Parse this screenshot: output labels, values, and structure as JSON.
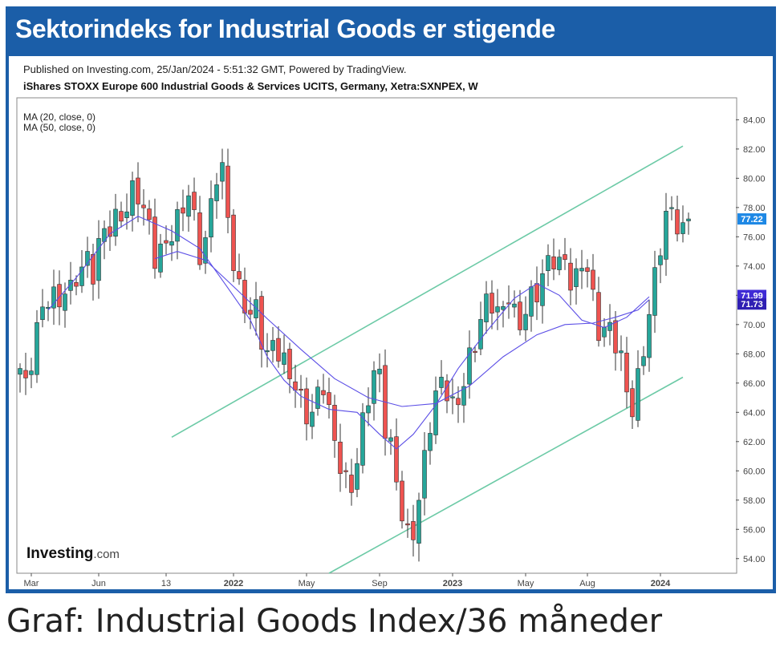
{
  "header": {
    "title": "Sektorindeks for Industrial Goods er stigende"
  },
  "info": {
    "published": "Published on Investing.com, 25/Jan/2024 - 5:51:32 GMT, Powered by TradingView.",
    "instrument": "iShares STOXX Europe 600 Industrial Goods & Services UCITS, Germany, Xetra:SXNPEX, W"
  },
  "caption": "Graf: Industrial Goods Index/36 måneder",
  "logo": {
    "text": "Investing",
    "suffix": ".com"
  },
  "colors": {
    "up": "#26a69a",
    "down": "#ef5350",
    "ma": "#5b4ee6",
    "channel": "#6ccaa6",
    "brand": "#1b5ea8"
  },
  "chart_data": {
    "type": "candlestick",
    "indicators": [
      "MA (20, close, 0)",
      "MA (50, close, 0)"
    ],
    "ylim": [
      53,
      85.5
    ],
    "y_ticks": [
      "84.00",
      "82.00",
      "80.00",
      "78.00",
      "76.00",
      "74.00",
      "72.00",
      "70.00",
      "68.00",
      "66.00",
      "64.00",
      "62.00",
      "60.00",
      "58.00",
      "56.00",
      "54.00"
    ],
    "x_ticks": [
      "Mar",
      "Jun",
      "13",
      "2022",
      "May",
      "Sep",
      "2023",
      "May",
      "Aug",
      "2024"
    ],
    "price_labels": [
      {
        "value": "77.22",
        "color": "#1e88e5"
      },
      {
        "value": "71.99",
        "color": "#3f2bd6"
      },
      {
        "value": "71.73",
        "color": "#2f1fb3"
      }
    ],
    "period": "W",
    "close_path": [
      67.0,
      66.0,
      68.5,
      69.8,
      71.0,
      72.5,
      71.5,
      72.8,
      71.5,
      73.0,
      74.0,
      75.0,
      73.5,
      75.5,
      76.5,
      77.0,
      78.0,
      77.5,
      78.5,
      79.0,
      78.0,
      77.0,
      74.0,
      74.5,
      76.0,
      77.0,
      78.0,
      79.0,
      77.0,
      75.0,
      76.0,
      79.0,
      80.5,
      79.5,
      76.0,
      73.0,
      72.0,
      70.0,
      71.0,
      69.5,
      68.0,
      69.0,
      67.5,
      66.5,
      67.0,
      65.5,
      64.0,
      63.0,
      65.0,
      66.5,
      64.0,
      61.5,
      59.5,
      58.5,
      60.0,
      62.5,
      64.5,
      66.0,
      67.0,
      63.5,
      61.5,
      58.5,
      56.0,
      55.0,
      57.5,
      59.5,
      62.5,
      64.5,
      66.5,
      66.0,
      64.0,
      64.5,
      66.5,
      68.5,
      70.0,
      71.0,
      71.5,
      70.5,
      71.5,
      72.5,
      70.0,
      69.5,
      71.5,
      72.5,
      73.0,
      73.5,
      74.5,
      74.0,
      75.0,
      73.0,
      72.5,
      74.5,
      73.5,
      71.0,
      69.0,
      69.5,
      69.0,
      68.0,
      66.0,
      64.0,
      66.0,
      69.0,
      72.0,
      75.0,
      76.5,
      77.5,
      77.2,
      76.5,
      77.2
    ],
    "ma20": [
      [
        5,
        71.0
      ],
      [
        10,
        73.2
      ],
      [
        16,
        76.2
      ],
      [
        21,
        77.4
      ],
      [
        27,
        76.4
      ],
      [
        32,
        75.2
      ],
      [
        37,
        72.5
      ],
      [
        41,
        70.3
      ],
      [
        44,
        67.8
      ],
      [
        47,
        66.2
      ],
      [
        50,
        65.1
      ],
      [
        55,
        64.2
      ],
      [
        60,
        64.0
      ],
      [
        64,
        62.5
      ],
      [
        67,
        61.5
      ],
      [
        70,
        62.5
      ],
      [
        74,
        64.5
      ],
      [
        78,
        67.0
      ],
      [
        83,
        69.5
      ],
      [
        88,
        71.8
      ],
      [
        92,
        72.8
      ],
      [
        96,
        72.0
      ],
      [
        100,
        70.3
      ],
      [
        104,
        69.8
      ],
      [
        108,
        70.5
      ],
      [
        112,
        71.9
      ]
    ],
    "ma50": [
      [
        24,
        74.5
      ],
      [
        28,
        75.0
      ],
      [
        33,
        74.4
      ],
      [
        38,
        72.6
      ],
      [
        44,
        70.4
      ],
      [
        50,
        68.3
      ],
      [
        56,
        66.3
      ],
      [
        62,
        65.0
      ],
      [
        68,
        64.4
      ],
      [
        74,
        64.6
      ],
      [
        80,
        65.8
      ],
      [
        86,
        67.8
      ],
      [
        92,
        69.3
      ],
      [
        97,
        70.0
      ],
      [
        102,
        70.1
      ],
      [
        106,
        70.5
      ],
      [
        110,
        71.0
      ],
      [
        112,
        71.7
      ]
    ],
    "channel": {
      "upper": [
        {
          "x": 27,
          "y": 62.3
        },
        {
          "x": 118,
          "y": 82.2
        }
      ],
      "lower": [
        {
          "x": 55,
          "y": 53.0
        },
        {
          "x": 118,
          "y": 66.4
        }
      ]
    }
  }
}
